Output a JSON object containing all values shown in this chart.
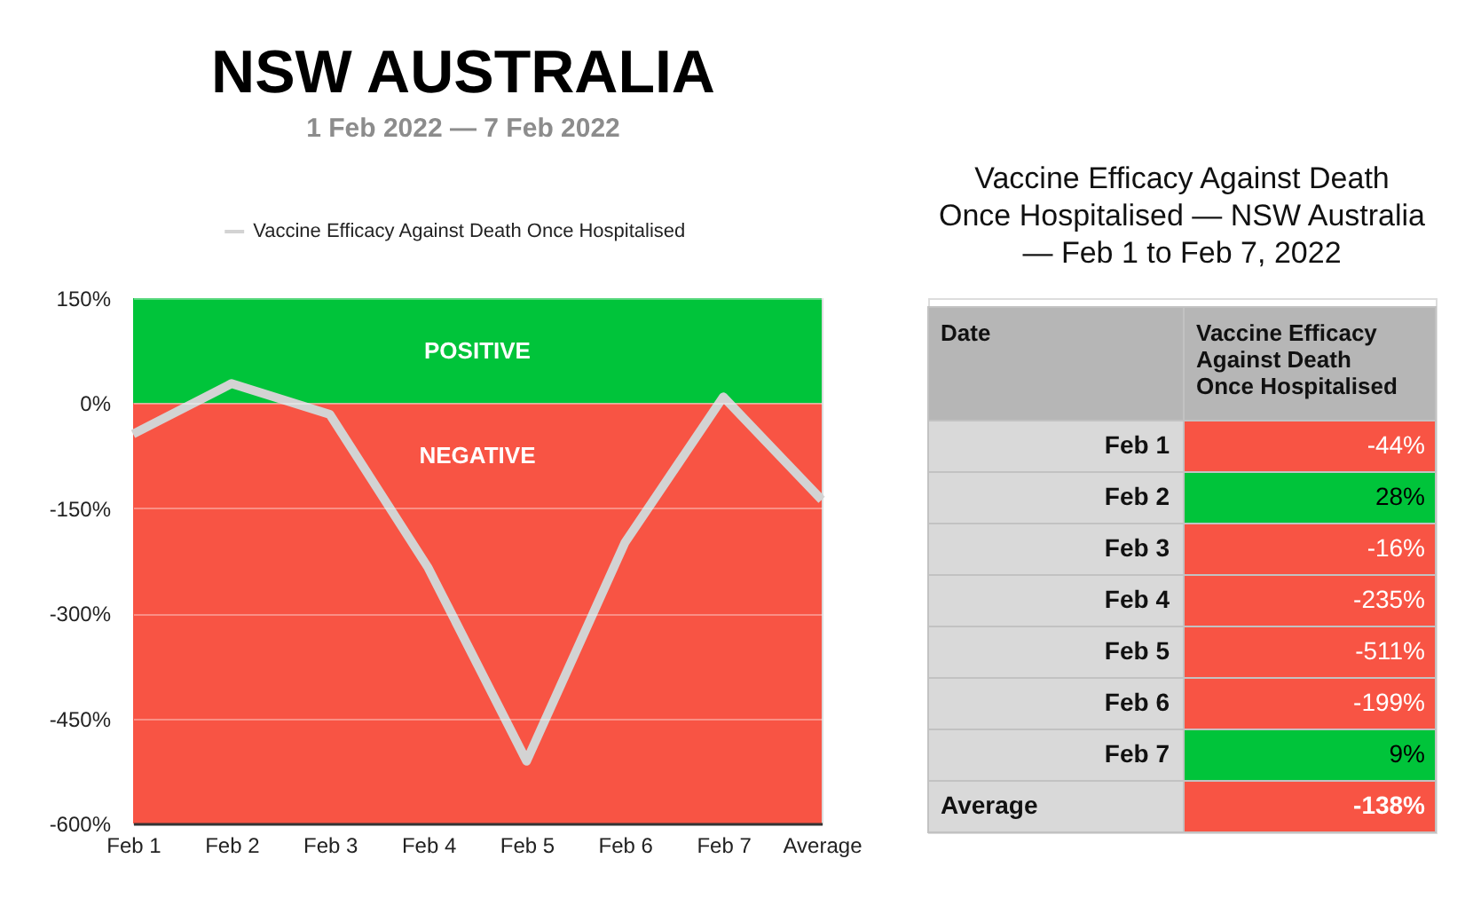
{
  "chart_data": [
    {
      "type": "line",
      "title": "NSW AUSTRALIA",
      "subtitle": "1 Feb 2022 — 7 Feb 2022",
      "categories": [
        "Feb 1",
        "Feb 2",
        "Feb 3",
        "Feb 4",
        "Feb 5",
        "Feb 6",
        "Feb 7",
        "Average"
      ],
      "series": [
        {
          "name": "Vaccine Efficacy Against Death Once Hospitalised",
          "color": "#d3d3d3",
          "values": [
            -44,
            28,
            -16,
            -235,
            -511,
            -199,
            9,
            -138
          ]
        }
      ],
      "ylim": [
        -600,
        150
      ],
      "yticks": [
        {
          "value": 150,
          "label": "150%"
        },
        {
          "value": 0,
          "label": "0%"
        },
        {
          "value": -150,
          "label": "-150%"
        },
        {
          "value": -300,
          "label": "-300%"
        },
        {
          "value": -450,
          "label": "-450%"
        },
        {
          "value": -600,
          "label": "-600%"
        }
      ],
      "bands": [
        {
          "axis": "y",
          "from": 0,
          "to": 150,
          "label": "POSITIVE",
          "color": "#00c43a"
        },
        {
          "axis": "y",
          "from": -600,
          "to": 0,
          "label": "NEGATIVE",
          "color": "#f85444"
        }
      ],
      "grid": "y",
      "legend": "top",
      "line_style": "solid"
    },
    {
      "type": "other",
      "title": "Vaccine Efficacy Against Death Once Hospitalised — NSW Australia — Feb 1 to Feb 7, 2022",
      "xlabel": "Date",
      "categories": [
        "Feb 1",
        "Feb 2",
        "Feb 3",
        "Feb 4",
        "Feb 5",
        "Feb 6",
        "Feb 7",
        "Average"
      ],
      "series": [
        {
          "name": "Vaccine Efficacy Against Death Once Hospitalised",
          "values": [
            -44,
            28,
            -16,
            -235,
            -511,
            -199,
            9,
            -138
          ],
          "value_labels": [
            "-44%",
            "28%",
            "-16%",
            "-235%",
            "-511%",
            "-199%",
            "9%",
            "-138%"
          ]
        }
      ]
    }
  ]
}
